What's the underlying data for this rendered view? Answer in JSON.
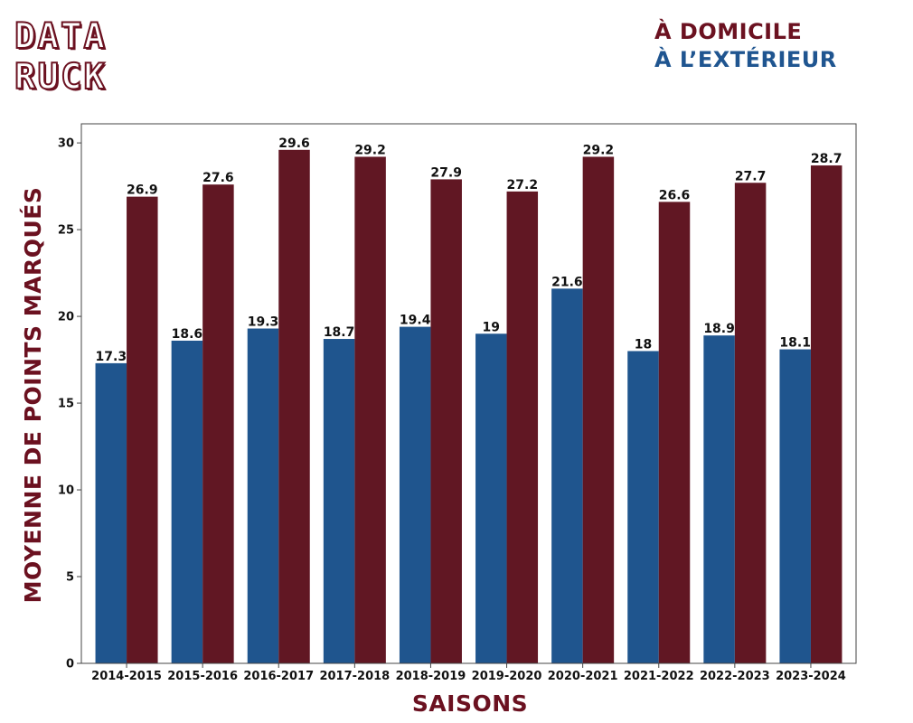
{
  "brand": {
    "line1": "DATA",
    "line2": "RUCK"
  },
  "legend": {
    "home": "À DOMICILE",
    "away": "À L’EXTÉRIEUR"
  },
  "colors": {
    "home": "#611723",
    "away": "#1f558e",
    "title": "#6b1120"
  },
  "chart_data": {
    "type": "bar",
    "xlabel": "SAISONS",
    "ylabel": "MOYENNE DE POINTS MARQUÉS",
    "ylim": [
      0,
      31.1
    ],
    "yticks": [
      0,
      5,
      10,
      15,
      20,
      25,
      30
    ],
    "categories": [
      "2014-2015",
      "2015-2016",
      "2016-2017",
      "2017-2018",
      "2018-2019",
      "2019-2020",
      "2020-2021",
      "2021-2022",
      "2022-2023",
      "2023-2024"
    ],
    "series": [
      {
        "name": "À L’EXTÉRIEUR",
        "color": "#1f558e",
        "values": [
          17.3,
          18.6,
          19.3,
          18.7,
          19.4,
          19,
          21.6,
          18,
          18.9,
          18.1
        ]
      },
      {
        "name": "À DOMICILE",
        "color": "#611723",
        "values": [
          26.9,
          27.6,
          29.6,
          29.2,
          27.9,
          27.2,
          29.2,
          26.6,
          27.7,
          28.7
        ]
      }
    ],
    "grid": false,
    "legend_position": "top-right"
  }
}
